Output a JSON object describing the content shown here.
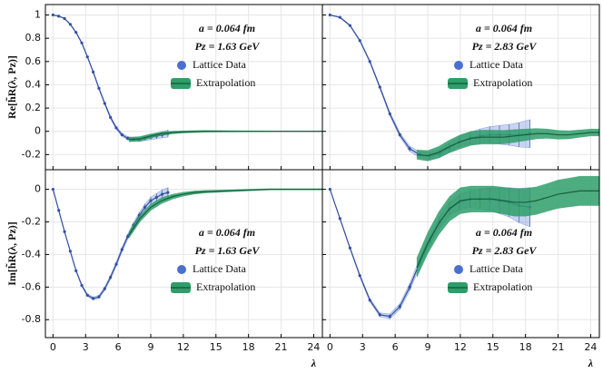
{
  "chart_data": [
    {
      "type": "line",
      "ylabel": "Re[h̃R(λ, Pz)]",
      "annotations": [
        "a = 0.064 fm",
        "Pz = 1.63 GeV"
      ],
      "xlim": [
        -0.7,
        24.8
      ],
      "ylim": [
        -0.33,
        1.09
      ],
      "xticks": [
        0,
        3,
        6,
        9,
        12,
        15,
        18,
        21,
        24
      ],
      "yticks": [
        -0.2,
        0,
        0.2,
        0.4,
        0.6,
        0.8,
        1
      ],
      "series": [
        {
          "name": "Lattice Data",
          "color": "#4a6fd0",
          "x": [
            0,
            0.53,
            1.06,
            1.59,
            2.12,
            2.65,
            3.17,
            3.7,
            4.23,
            4.76,
            5.29,
            5.82,
            6.35,
            6.88,
            7.41,
            7.94,
            8.47,
            9.0,
            9.53,
            10.05,
            10.58
          ],
          "values": [
            1.0,
            0.99,
            0.97,
            0.92,
            0.85,
            0.76,
            0.64,
            0.51,
            0.37,
            0.24,
            0.12,
            0.03,
            -0.03,
            -0.06,
            -0.07,
            -0.07,
            -0.06,
            -0.05,
            -0.04,
            -0.03,
            -0.02
          ],
          "errors": [
            0.002,
            0.003,
            0.004,
            0.005,
            0.006,
            0.007,
            0.008,
            0.009,
            0.01,
            0.011,
            0.012,
            0.013,
            0.014,
            0.015,
            0.016,
            0.018,
            0.02,
            0.022,
            0.024,
            0.027,
            0.03
          ]
        },
        {
          "name": "Extrapolation",
          "color": "#2e9e6a",
          "x": [
            7,
            8,
            9,
            10,
            11,
            12,
            14,
            16,
            18,
            20,
            22,
            24.8
          ],
          "values": [
            -0.07,
            -0.065,
            -0.04,
            -0.02,
            -0.01,
            -0.005,
            0,
            0,
            0,
            0,
            0,
            0
          ],
          "errors": [
            0.02,
            0.02,
            0.018,
            0.015,
            0.012,
            0.01,
            0.008,
            0.006,
            0.005,
            0.004,
            0.004,
            0.004
          ]
        }
      ]
    },
    {
      "type": "line",
      "annotations": [
        "a = 0.064 fm",
        "Pz = 2.83 GeV"
      ],
      "xlim": [
        -0.7,
        24.8
      ],
      "ylim": [
        -0.33,
        1.09
      ],
      "xticks": [
        0,
        3,
        6,
        9,
        12,
        15,
        18,
        21,
        24
      ],
      "yticks": [
        -0.2,
        0,
        0.2,
        0.4,
        0.6,
        0.8,
        1
      ],
      "series": [
        {
          "name": "Lattice Data",
          "color": "#4a6fd0",
          "x": [
            0,
            0.92,
            1.84,
            2.75,
            3.67,
            4.59,
            5.51,
            6.43,
            7.34,
            8.26,
            9.18,
            10.1,
            11.0,
            11.9,
            12.9,
            13.8,
            14.7,
            15.6,
            16.5,
            17.4,
            18.4
          ],
          "values": [
            1.0,
            0.98,
            0.91,
            0.78,
            0.6,
            0.38,
            0.15,
            -0.03,
            -0.15,
            -0.2,
            -0.21,
            -0.19,
            -0.14,
            -0.09,
            -0.06,
            -0.04,
            -0.03,
            -0.03,
            -0.03,
            -0.03,
            -0.02
          ],
          "errors": [
            0.002,
            0.004,
            0.006,
            0.008,
            0.01,
            0.012,
            0.015,
            0.018,
            0.022,
            0.026,
            0.03,
            0.035,
            0.04,
            0.046,
            0.052,
            0.06,
            0.07,
            0.08,
            0.09,
            0.105,
            0.12
          ]
        },
        {
          "name": "Extrapolation",
          "color": "#2e9e6a",
          "x": [
            8,
            9,
            10,
            11,
            12,
            13,
            14,
            15,
            16,
            17,
            18,
            19,
            20,
            21,
            22,
            23,
            24,
            24.8
          ],
          "values": [
            -0.2,
            -0.21,
            -0.18,
            -0.13,
            -0.09,
            -0.06,
            -0.05,
            -0.05,
            -0.05,
            -0.04,
            -0.03,
            -0.02,
            -0.02,
            -0.03,
            -0.03,
            -0.02,
            -0.01,
            -0.01
          ],
          "errors": [
            0.04,
            0.045,
            0.05,
            0.055,
            0.06,
            0.06,
            0.06,
            0.06,
            0.058,
            0.055,
            0.05,
            0.045,
            0.04,
            0.038,
            0.035,
            0.032,
            0.03,
            0.03
          ]
        }
      ]
    },
    {
      "type": "line",
      "ylabel": "Im[h̃R(λ, Pz)]",
      "xlabel": "λ",
      "annotations": [
        "a = 0.064 fm",
        "Pz = 1.63 GeV"
      ],
      "xlim": [
        -0.7,
        24.8
      ],
      "ylim": [
        -0.91,
        0.12
      ],
      "xticks": [
        0,
        3,
        6,
        9,
        12,
        15,
        18,
        21,
        24
      ],
      "yticks": [
        -0.8,
        -0.6,
        -0.4,
        -0.2,
        0
      ],
      "series": [
        {
          "name": "Lattice Data",
          "color": "#4a6fd0",
          "x": [
            0,
            0.53,
            1.06,
            1.59,
            2.12,
            2.65,
            3.17,
            3.7,
            4.23,
            4.76,
            5.29,
            5.82,
            6.35,
            6.88,
            7.41,
            7.94,
            8.47,
            9.0,
            9.53,
            10.05,
            10.58
          ],
          "values": [
            0,
            -0.13,
            -0.26,
            -0.38,
            -0.5,
            -0.59,
            -0.65,
            -0.67,
            -0.66,
            -0.61,
            -0.54,
            -0.46,
            -0.37,
            -0.29,
            -0.22,
            -0.16,
            -0.11,
            -0.07,
            -0.05,
            -0.03,
            -0.02
          ],
          "errors": [
            0.001,
            0.003,
            0.004,
            0.005,
            0.006,
            0.007,
            0.008,
            0.009,
            0.01,
            0.011,
            0.012,
            0.013,
            0.014,
            0.015,
            0.016,
            0.018,
            0.02,
            0.022,
            0.024,
            0.027,
            0.03
          ]
        },
        {
          "name": "Extrapolation",
          "color": "#2e9e6a",
          "x": [
            7,
            8,
            9,
            10,
            11,
            12,
            13,
            14,
            16,
            18,
            20,
            24.8
          ],
          "values": [
            -0.28,
            -0.18,
            -0.11,
            -0.07,
            -0.045,
            -0.03,
            -0.02,
            -0.015,
            -0.01,
            -0.005,
            0,
            0
          ],
          "errors": [
            0.02,
            0.02,
            0.02,
            0.018,
            0.015,
            0.012,
            0.01,
            0.008,
            0.006,
            0.005,
            0.004,
            0.004
          ]
        }
      ]
    },
    {
      "type": "line",
      "xlabel": "λ",
      "annotations": [
        "a = 0.064 fm",
        "Pz = 2.83 GeV"
      ],
      "xlim": [
        -0.7,
        24.8
      ],
      "ylim": [
        -0.91,
        0.12
      ],
      "xticks": [
        0,
        3,
        6,
        9,
        12,
        15,
        18,
        21,
        24
      ],
      "yticks": [
        -0.8,
        -0.6,
        -0.4,
        -0.2,
        0
      ],
      "series": [
        {
          "name": "Lattice Data",
          "color": "#4a6fd0",
          "x": [
            0,
            0.92,
            1.84,
            2.75,
            3.67,
            4.59,
            5.51,
            6.43,
            7.34,
            8.26,
            9.18,
            10.1,
            11.0,
            11.9,
            12.9,
            13.8,
            14.7,
            15.6,
            16.5,
            17.4,
            18.4
          ],
          "values": [
            0,
            -0.18,
            -0.36,
            -0.53,
            -0.68,
            -0.77,
            -0.78,
            -0.72,
            -0.6,
            -0.45,
            -0.32,
            -0.2,
            -0.12,
            -0.08,
            -0.06,
            -0.06,
            -0.06,
            -0.07,
            -0.08,
            -0.1,
            -0.11
          ],
          "errors": [
            0.001,
            0.004,
            0.006,
            0.008,
            0.01,
            0.012,
            0.015,
            0.018,
            0.022,
            0.026,
            0.03,
            0.035,
            0.04,
            0.046,
            0.052,
            0.06,
            0.07,
            0.08,
            0.09,
            0.105,
            0.12
          ]
        },
        {
          "name": "Extrapolation",
          "color": "#2e9e6a",
          "x": [
            8,
            9,
            10,
            11,
            12,
            13,
            14,
            15,
            16,
            17,
            18,
            19,
            20,
            21,
            22,
            23,
            24,
            24.8
          ],
          "values": [
            -0.48,
            -0.33,
            -0.21,
            -0.12,
            -0.07,
            -0.06,
            -0.06,
            -0.06,
            -0.07,
            -0.08,
            -0.08,
            -0.07,
            -0.05,
            -0.03,
            -0.02,
            -0.01,
            -0.01,
            -0.01
          ],
          "errors": [
            0.06,
            0.065,
            0.07,
            0.075,
            0.08,
            0.08,
            0.08,
            0.08,
            0.082,
            0.085,
            0.085,
            0.085,
            0.085,
            0.087,
            0.088,
            0.09,
            0.09,
            0.09
          ]
        }
      ]
    }
  ]
}
